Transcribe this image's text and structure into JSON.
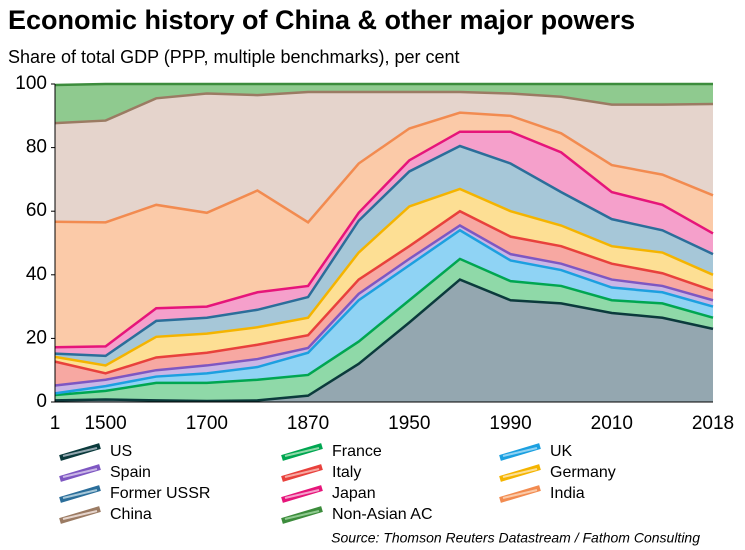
{
  "chart_data": {
    "type": "stacked_area",
    "title": "Economic history of China & other major powers",
    "subtitle": "Share of total GDP (PPP, multiple benchmarks), per cent",
    "source": "Source: Thomson Reuters Datastream / Fathom Consulting",
    "categories": [
      "1",
      "1500",
      null,
      "1700",
      null,
      "1870",
      null,
      "1950",
      null,
      "1990",
      null,
      "2010",
      null,
      "2018"
    ],
    "ylim": [
      0,
      100
    ],
    "yticks": [
      0,
      20,
      40,
      60,
      80,
      100
    ],
    "series": [
      {
        "name": "US",
        "color": "#0b3a3c",
        "fill": "#94a7b0",
        "values": [
          0.5,
          0.8,
          0.5,
          0.3,
          0.5,
          2,
          12,
          25,
          38.5,
          32,
          31,
          28,
          26.5,
          23
        ]
      },
      {
        "name": "France",
        "color": "#00a651",
        "fill": "#8fd9a8",
        "values": [
          1.7,
          2.7,
          5.5,
          5.7,
          6.5,
          6.5,
          7,
          7,
          6.5,
          6,
          5.5,
          4,
          4.5,
          3.5
        ]
      },
      {
        "name": "UK",
        "color": "#1ca0e0",
        "fill": "#8fd3f4",
        "values": [
          0.5,
          1.5,
          2,
          3,
          4,
          7,
          13,
          11,
          9,
          6.5,
          5,
          4,
          3.5,
          3.5
        ]
      },
      {
        "name": "Spain",
        "color": "#7e57c2",
        "fill": "#c9b6e6",
        "values": [
          2.5,
          2,
          2,
          2.5,
          2.5,
          1.5,
          2,
          2,
          1.5,
          2,
          2,
          2.5,
          2,
          2
        ]
      },
      {
        "name": "Italy",
        "color": "#e8413c",
        "fill": "#f7a8a2",
        "values": [
          7.5,
          2,
          4,
          4,
          4.5,
          4,
          4.5,
          4,
          4.5,
          5.5,
          5.5,
          5,
          4,
          3
        ]
      },
      {
        "name": "Germany",
        "color": "#f4b400",
        "fill": "#fddf94",
        "values": [
          1.5,
          2.5,
          6.5,
          6,
          5.5,
          5.5,
          8.5,
          12.5,
          7,
          8,
          6.5,
          5.5,
          6.5,
          5
        ]
      },
      {
        "name": "Former USSR",
        "color": "#2b6e9a",
        "fill": "#a6c7d8",
        "values": [
          1,
          3,
          5,
          5,
          5.5,
          6.5,
          10,
          11,
          13.5,
          15,
          10.5,
          8.5,
          7,
          6.5
        ]
      },
      {
        "name": "Japan",
        "color": "#e6157a",
        "fill": "#f5a0cb",
        "values": [
          2,
          3,
          4,
          3.5,
          5.5,
          3.5,
          2.5,
          3.5,
          4.5,
          10,
          12.5,
          8.5,
          8,
          6.5
        ]
      },
      {
        "name": "India",
        "color": "#f28b50",
        "fill": "#fbcaa8",
        "values": [
          39.5,
          39,
          32.5,
          29.5,
          32,
          20,
          15.5,
          10,
          6,
          5,
          6,
          8.5,
          9.5,
          12
        ]
      },
      {
        "name": "China",
        "color": "#9b7b63",
        "fill": "#e5d4cc",
        "values": [
          31,
          32,
          33.5,
          37.5,
          30,
          41,
          22.5,
          11.5,
          6.5,
          7,
          11.5,
          19,
          22,
          28.7
        ]
      },
      {
        "name": "Non-Asian AC",
        "color": "#3c8c3c",
        "fill": "#8fca8f",
        "values": [
          12,
          11.5,
          4.5,
          3,
          3.5,
          2.5,
          2.5,
          2.5,
          2.5,
          3,
          4,
          6.5,
          6.5,
          6.3
        ]
      }
    ]
  }
}
